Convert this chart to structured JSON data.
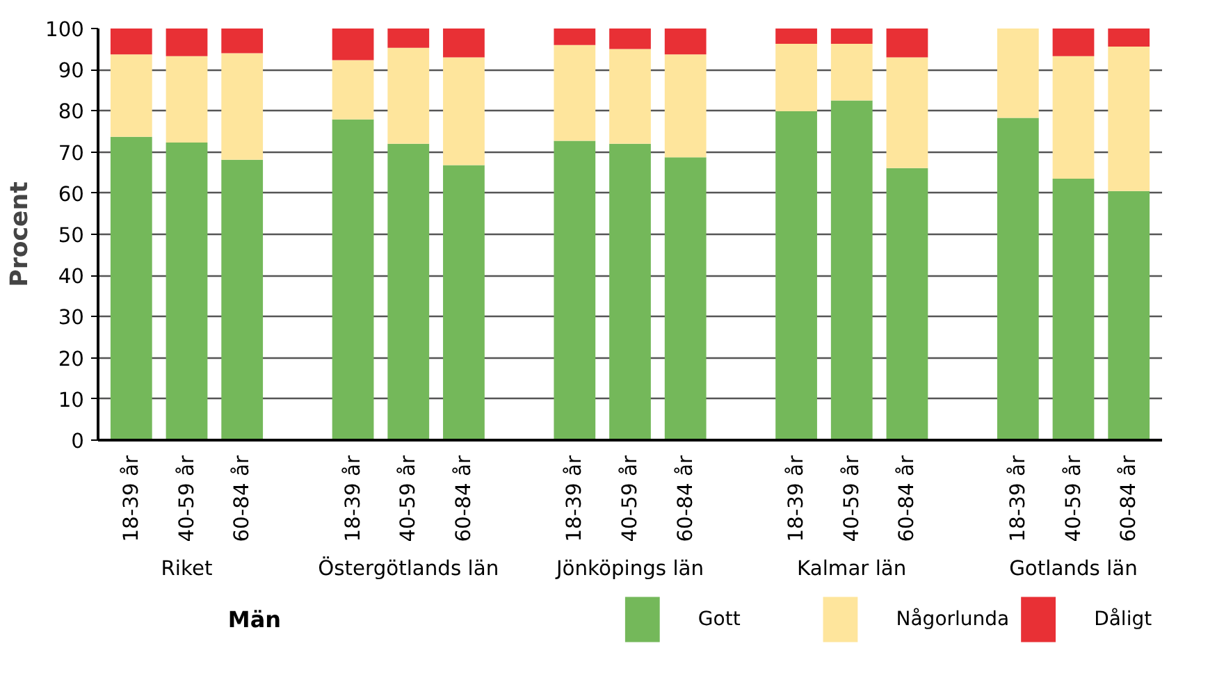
{
  "chart_data": {
    "type": "bar",
    "stacked": true,
    "title": "Män",
    "ylabel": "Procent",
    "categories": [
      "18-39 år",
      "40-59 år",
      "60-84 år",
      "18-39 år",
      "40-59 år",
      "60-84 år",
      "18-39 år",
      "40-59 år",
      "60-84 år",
      "18-39 år",
      "40-59 år",
      "60-84 år",
      "18-39 år",
      "40-59 år",
      "60-84 år"
    ],
    "annotations": [
      "Riket",
      "Östergötlands län",
      "Jönköpings län",
      "Kalmar län",
      "Gotlands län"
    ],
    "series": [
      {
        "name": "Gott",
        "color": "#74b85a",
        "values": [
          73.7,
          72.3,
          68.1,
          77.9,
          72.0,
          66.8,
          72.7,
          72.0,
          68.7,
          79.9,
          82.5,
          66.1,
          78.3,
          63.5,
          60.5
        ]
      },
      {
        "name": "Någorlunda",
        "color": "#fee59c",
        "values": [
          20.0,
          21.0,
          25.9,
          14.4,
          23.3,
          26.2,
          23.3,
          23.0,
          25.0,
          16.4,
          13.8,
          26.9,
          21.7,
          29.8,
          35.1
        ]
      },
      {
        "name": "Dåligt",
        "color": "#e83035",
        "values": [
          6.3,
          6.7,
          6.0,
          7.7,
          4.7,
          7.0,
          4.0,
          5.0,
          6.3,
          3.7,
          3.7,
          7.0,
          0,
          6.7,
          4.4
        ]
      }
    ],
    "ylim": [
      0,
      100
    ],
    "yticks": [
      0,
      10,
      20,
      30,
      40,
      50,
      60,
      70,
      80,
      90,
      100
    ],
    "grid": "y",
    "legend": "bottom"
  }
}
